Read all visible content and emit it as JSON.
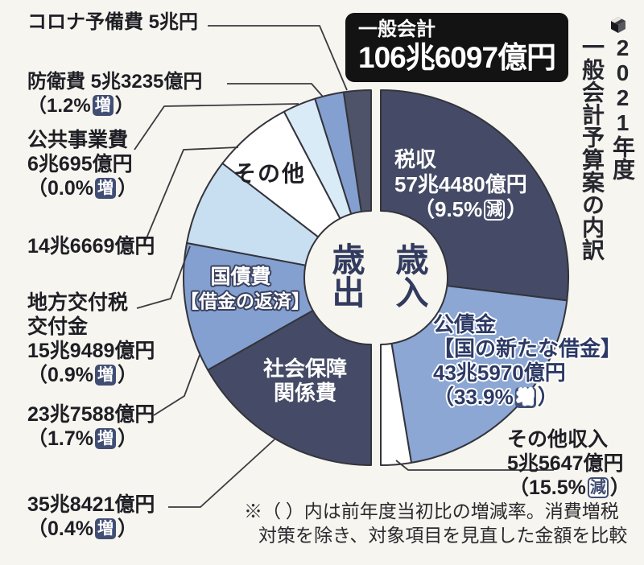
{
  "page": {
    "background": "#f7f5ef",
    "vertical_title": "2021年度\n一般会計予算案の内訳",
    "header_box": {
      "label": "一般会計",
      "value": "106兆6097億円"
    },
    "center": {
      "left": "歳出",
      "right": "歳入"
    },
    "footnote": {
      "line1": "※（ ）内は前年度当初比の増減率。消費増税",
      "line2": "対策を除き、対象項目を見直した金額を比較"
    }
  },
  "colors": {
    "dark_navy": "#454b66",
    "corona_navy": "#4f5369",
    "medium_blue": "#84a0d0",
    "bond_blue": "#8ca7d4",
    "pale_blue_light": "#d9ebf7",
    "pale_blue": "#c8def1",
    "white_slice": "#ffffff",
    "outline": "#34343c",
    "badge_navy": "#414e74",
    "leader_line": "#3a3a40"
  },
  "chart_data": {
    "type": "pie",
    "title": "2021年度一般会計予算案の内訳",
    "total": {
      "label": "一般会計",
      "amount": "106兆6097億円",
      "value_trillion_yen": 106.6097
    },
    "halves": {
      "right": "歳入（revenue）",
      "left": "歳出（expenditure）"
    },
    "unit": "兆円 (trillion yen)",
    "revenue": [
      {
        "id": "tax",
        "name": "税収",
        "amount": "57兆4480億円",
        "value": 57.448,
        "change": "9.5%減",
        "color": "#454b66"
      },
      {
        "id": "bonds",
        "name": "公債金【国の新たな借金】",
        "amount": "43兆5970億円",
        "value": 43.597,
        "change": "33.9%増",
        "color": "#8ca7d4"
      },
      {
        "id": "other-income",
        "name": "その他収入",
        "amount": "5兆5647億円",
        "value": 5.5647,
        "change": "15.5%減",
        "color": "#ffffff"
      }
    ],
    "expenditure": [
      {
        "id": "corona-reserve",
        "name": "コロナ予備費",
        "amount": "5兆円",
        "value": 5.0,
        "change": "",
        "color": "#4f5369"
      },
      {
        "id": "defense",
        "name": "防衛費",
        "amount": "5兆3235億円",
        "value": 5.3235,
        "change": "1.2%増",
        "color": "#84a0d0"
      },
      {
        "id": "public-works",
        "name": "公共事業費",
        "amount": "6兆695億円",
        "value": 6.0695,
        "change": "0.0%増",
        "color": "#d9ebf7"
      },
      {
        "id": "others",
        "name": "その他",
        "amount": "14兆6669億円",
        "value": 14.6669,
        "change": "",
        "color": "#ffffff"
      },
      {
        "id": "local-tax",
        "name": "地方交付税交付金",
        "amount": "15兆9489億円",
        "value": 15.9489,
        "change": "0.9%増",
        "color": "#c8def1"
      },
      {
        "id": "debt-service",
        "name": "国債費【借金の返済】",
        "amount": "23兆7588億円",
        "value": 23.7588,
        "change": "1.7%増",
        "color": "#84a0d0"
      },
      {
        "id": "social-security",
        "name": "社会保障関係費",
        "amount": "35兆8421億円",
        "value": 35.8421,
        "change": "0.4%増",
        "color": "#454b66"
      }
    ]
  },
  "callouts": {
    "corona": {
      "line1": "コロナ予備費 5兆円"
    },
    "defense": {
      "line1": "防衛費 5兆3235億円",
      "pct": "（1.2%",
      "dir": "増",
      "close": "）"
    },
    "public_works": {
      "line1": "公共事業費",
      "line2": "6兆695億円",
      "pct": "（0.0%",
      "dir": "増",
      "close": "）"
    },
    "others_exp": {
      "line1": "14兆6669億円"
    },
    "local_tax": {
      "line1": "地方交付税",
      "line2": "交付金",
      "line3": "15兆9489億円",
      "pct": "（0.9%",
      "dir": "増",
      "close": "）"
    },
    "debt_service": {
      "line1": "23兆7588億円",
      "pct": "（1.7%",
      "dir": "増",
      "close": "）"
    },
    "social_security": {
      "line1": "35兆8421億円",
      "pct": "（0.4%",
      "dir": "増",
      "close": "）"
    },
    "other_income": {
      "line1": "その他収入",
      "line2": "5兆5647億円",
      "pct": "（15.5%",
      "dir": "減",
      "close": "）"
    }
  },
  "slice_labels": {
    "tax": {
      "line1": "税収",
      "line2": "57兆4480億円",
      "pct": "（9.5%",
      "dir": "減",
      "close": "）"
    },
    "bonds": {
      "line1": "公債金",
      "line2": "【国の新たな借金】",
      "line3": "43兆5970億円",
      "pct": "（33.9%",
      "dir": "増",
      "close": "）"
    },
    "kokusaihi": {
      "line1": "国債費",
      "line2": "【借金の返済】"
    },
    "shakai": {
      "line1": "社会保障",
      "line2": "関係費"
    },
    "sonota": {
      "line1": "その他"
    }
  }
}
